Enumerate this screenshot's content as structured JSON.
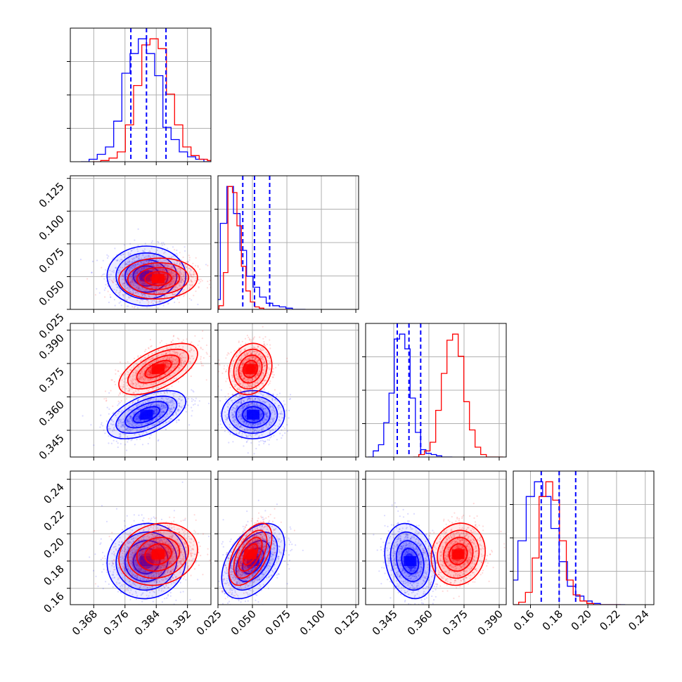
{
  "chart_data": {
    "type": "corner",
    "grid": true,
    "colors": {
      "series_a": "#0000ff",
      "series_b": "#ff0000"
    },
    "parameters": [
      {
        "range": [
          0.362,
          0.398
        ],
        "ticks": [
          "0.368",
          "0.376",
          "0.384",
          "0.392"
        ]
      },
      {
        "range": [
          0.025,
          0.127
        ],
        "ticks": [
          "0.025",
          "0.050",
          "0.075",
          "0.100",
          "0.125"
        ]
      },
      {
        "range": [
          0.333,
          0.393
        ],
        "ticks": [
          "0.345",
          "0.360",
          "0.375",
          "0.390"
        ]
      },
      {
        "range": [
          0.148,
          0.246
        ],
        "ticks": [
          "0.16",
          "0.18",
          "0.20",
          "0.22",
          "0.24"
        ]
      }
    ],
    "series": [
      {
        "color": "#0000ff",
        "means": [
          0.3815,
          0.0505,
          0.352,
          0.18
        ],
        "sds": [
          0.0042,
          0.0095,
          0.0045,
          0.0115
        ],
        "correlations": {
          "0-1": 0.0,
          "0-2": 0.55,
          "0-3": 0.05,
          "1-2": 0.0,
          "1-3": 0.45,
          "2-3": -0.2
        },
        "quantiles": [
          [
            0.3775,
            0.3815,
            0.3865
          ],
          [
            0.043,
            0.0515,
            0.0625
          ],
          [
            0.3465,
            0.3515,
            0.3565
          ],
          [
            0.1675,
            0.18,
            0.1915
          ]
        ],
        "histograms": [
          [
            0.0,
            0.02,
            0.06,
            0.12,
            0.33,
            0.72,
            0.88,
            1.0,
            0.88,
            0.7,
            0.28,
            0.18,
            0.08,
            0.04,
            0.02,
            0.0
          ],
          [
            0.0,
            0.05,
            0.08,
            0.7,
            1.0,
            0.78,
            0.48,
            0.27,
            0.18,
            0.1,
            0.05,
            0.03,
            0.02,
            0.01,
            0.0,
            0.0
          ],
          [
            0.0,
            0.05,
            0.1,
            0.28,
            0.52,
            0.96,
            1.0,
            0.88,
            0.48,
            0.2,
            0.06,
            0.03,
            0.02,
            0.01,
            0.0,
            0.0
          ],
          [
            0.0,
            0.05,
            0.2,
            0.52,
            0.88,
            1.0,
            0.88,
            0.62,
            0.35,
            0.15,
            0.07,
            0.03,
            0.01,
            0.0,
            0.0,
            0.0
          ]
        ]
      },
      {
        "color": "#ff0000",
        "means": [
          0.3845,
          0.0485,
          0.3725,
          0.185
        ],
        "sds": [
          0.0042,
          0.0065,
          0.0048,
          0.0095
        ],
        "correlations": {
          "0-1": 0.05,
          "0-2": 0.6,
          "0-3": 0.15,
          "1-2": 0.15,
          "1-3": 0.55,
          "2-3": 0.1
        },
        "quantiles": [
          [
            0.3805,
            0.3845,
            0.3885
          ],
          [
            0.0425,
            0.0485,
            0.0555
          ],
          [
            0.368,
            0.3725,
            0.377
          ],
          [
            0.176,
            0.185,
            0.194
          ]
        ],
        "histograms": [
          [
            0.0,
            0.01,
            0.03,
            0.08,
            0.3,
            0.62,
            0.95,
            1.0,
            0.92,
            0.55,
            0.3,
            0.12,
            0.05,
            0.02,
            0.01,
            0.0
          ],
          [
            0.0,
            0.03,
            0.3,
            1.0,
            0.95,
            0.68,
            0.35,
            0.15,
            0.06,
            0.02,
            0.01,
            0.0,
            0.0,
            0.0,
            0.0,
            0.0
          ],
          [
            0.0,
            0.02,
            0.05,
            0.12,
            0.38,
            0.68,
            0.95,
            1.0,
            0.82,
            0.45,
            0.22,
            0.08,
            0.02,
            0.0,
            0.0,
            0.0
          ],
          [
            0.0,
            0.02,
            0.1,
            0.38,
            0.88,
            1.0,
            0.85,
            0.52,
            0.2,
            0.08,
            0.03,
            0.01,
            0.0,
            0.0,
            0.0,
            0.0
          ]
        ]
      }
    ]
  }
}
